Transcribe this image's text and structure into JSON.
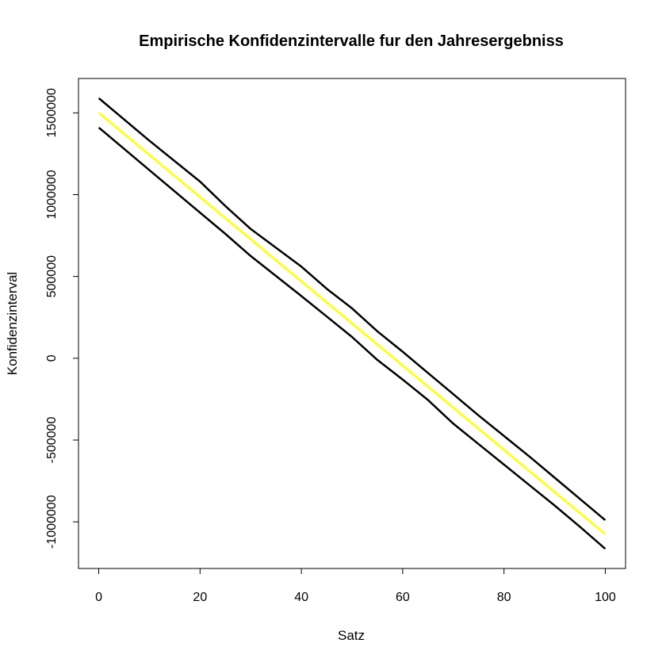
{
  "chart_data": {
    "type": "line",
    "title": "Empirische Konfidenzintervalle fur den Jahresergebniss",
    "xlabel": "Satz",
    "ylabel": "Konfidenzinterval",
    "xlim": [
      -4,
      104
    ],
    "ylim": [
      -1285000,
      1710000
    ],
    "xticks": [
      0,
      20,
      40,
      60,
      80,
      100
    ],
    "xtick_labels": [
      "0",
      "20",
      "40",
      "60",
      "80",
      "100"
    ],
    "yticks": [
      -1000000,
      -500000,
      0,
      500000,
      1000000,
      1500000
    ],
    "ytick_labels": [
      "-1000000",
      "-500000",
      "0",
      "500000",
      "1000000",
      "1500000"
    ],
    "grid": false,
    "series": [
      {
        "color": "#000000",
        "x": [
          0,
          10,
          20,
          25,
          30,
          40,
          45,
          50,
          55,
          60,
          65,
          70,
          75,
          80,
          85,
          90,
          95,
          100
        ],
        "y": [
          1590000,
          1330000,
          1080000,
          930000,
          790000,
          560000,
          425000,
          305000,
          165000,
          40000,
          -90000,
          -220000,
          -350000,
          -475000,
          -600000,
          -730000,
          -860000,
          -990000
        ]
      },
      {
        "color": "#ffff00",
        "x": [
          0,
          20,
          40,
          60,
          80,
          100
        ],
        "y": [
          1500000,
          985000,
          470000,
          -45000,
          -560000,
          -1075000
        ]
      },
      {
        "color": "#000000",
        "x": [
          0,
          10,
          20,
          25,
          30,
          40,
          45,
          50,
          55,
          60,
          65,
          70,
          75,
          80,
          85,
          90,
          95,
          100
        ],
        "y": [
          1410000,
          1150000,
          890000,
          760000,
          625000,
          380000,
          255000,
          130000,
          -10000,
          -130000,
          -255000,
          -400000,
          -525000,
          -650000,
          -775000,
          -900000,
          -1030000,
          -1165000
        ]
      }
    ]
  }
}
